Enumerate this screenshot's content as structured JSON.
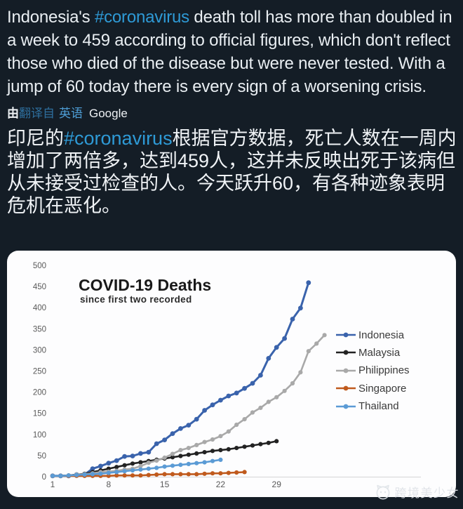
{
  "colors": {
    "background": "#141d26",
    "card": "#fdfdfe",
    "hashtag_blue": "#2e9ad6",
    "translated_link_blue": "#2e6f9e",
    "language_link_blue": "#4e9ed6"
  },
  "tweet": {
    "english": {
      "before": "Indonesia's ",
      "hashtag": "#coronavirus",
      "after": " death toll has more than doubled in a week to 459 according to official figures, which don't reflect those who died of the disease but were never tested. With a jump of 60 today there is every sign of a worsening crisis."
    },
    "translation_bar": {
      "prefix": "由",
      "translated_link": "翻译自",
      "language_link": "英语",
      "provider": "Google"
    },
    "chinese": {
      "before": "印尼的",
      "hashtag": "#coronavirus",
      "after": "根据官方数据，死亡人数在一周内增加了两倍多，达到459人，这并未反映出死于该病但从未接受过检查的人。今天跃升60，有各种迹象表明危机在恶化。"
    }
  },
  "watermark": {
    "label": "跨境美少女"
  },
  "chart_data": {
    "type": "line",
    "title": "COVID-19 Deaths",
    "subtitle": "since first two recorded",
    "xlabel": "",
    "ylabel": "",
    "x_ticks": [
      1,
      8,
      15,
      22,
      29
    ],
    "y_ticks": [
      0,
      50,
      100,
      150,
      200,
      250,
      300,
      350,
      400,
      450,
      500
    ],
    "xlim": [
      1,
      36
    ],
    "ylim": [
      0,
      500
    ],
    "grid": false,
    "legend_position": "right",
    "x_unit": "day since first two deaths",
    "series": [
      {
        "name": "Indonesia",
        "color": "#3a63ac",
        "values": [
          2,
          2,
          2,
          5,
          5,
          19,
          25,
          32,
          38,
          48,
          49,
          55,
          58,
          78,
          87,
          102,
          114,
          122,
          136,
          157,
          170,
          181,
          191,
          198,
          209,
          221,
          240,
          280,
          306,
          327,
          373,
          399,
          459
        ]
      },
      {
        "name": "Malaysia",
        "color": "#222222",
        "values": [
          2,
          2,
          3,
          5,
          7,
          11,
          15,
          19,
          23,
          27,
          31,
          34,
          37,
          40,
          43,
          46,
          49,
          52,
          55,
          58,
          61,
          63,
          65,
          68,
          71,
          74,
          77,
          80,
          84
        ]
      },
      {
        "name": "Philippines",
        "color": "#a9a9a9",
        "values": [
          2,
          2,
          2,
          5,
          6,
          8,
          11,
          12,
          14,
          17,
          19,
          25,
          33,
          38,
          45,
          54,
          63,
          68,
          75,
          82,
          88,
          96,
          107,
          123,
          136,
          152,
          163,
          177,
          188,
          203,
          221,
          247,
          297,
          315,
          335
        ]
      },
      {
        "name": "Singapore",
        "color": "#c05a1d",
        "values": [
          2,
          2,
          2,
          2,
          2,
          2,
          2,
          2,
          3,
          3,
          3,
          3,
          4,
          5,
          6,
          6,
          6,
          6,
          6,
          7,
          8,
          8,
          9,
          10,
          11
        ]
      },
      {
        "name": "Thailand",
        "color": "#5b9bd5",
        "values": [
          2,
          2,
          3,
          4,
          5,
          6,
          7,
          9,
          11,
          13,
          15,
          17,
          19,
          21,
          24,
          26,
          28,
          30,
          32,
          34,
          37,
          40
        ]
      }
    ]
  }
}
